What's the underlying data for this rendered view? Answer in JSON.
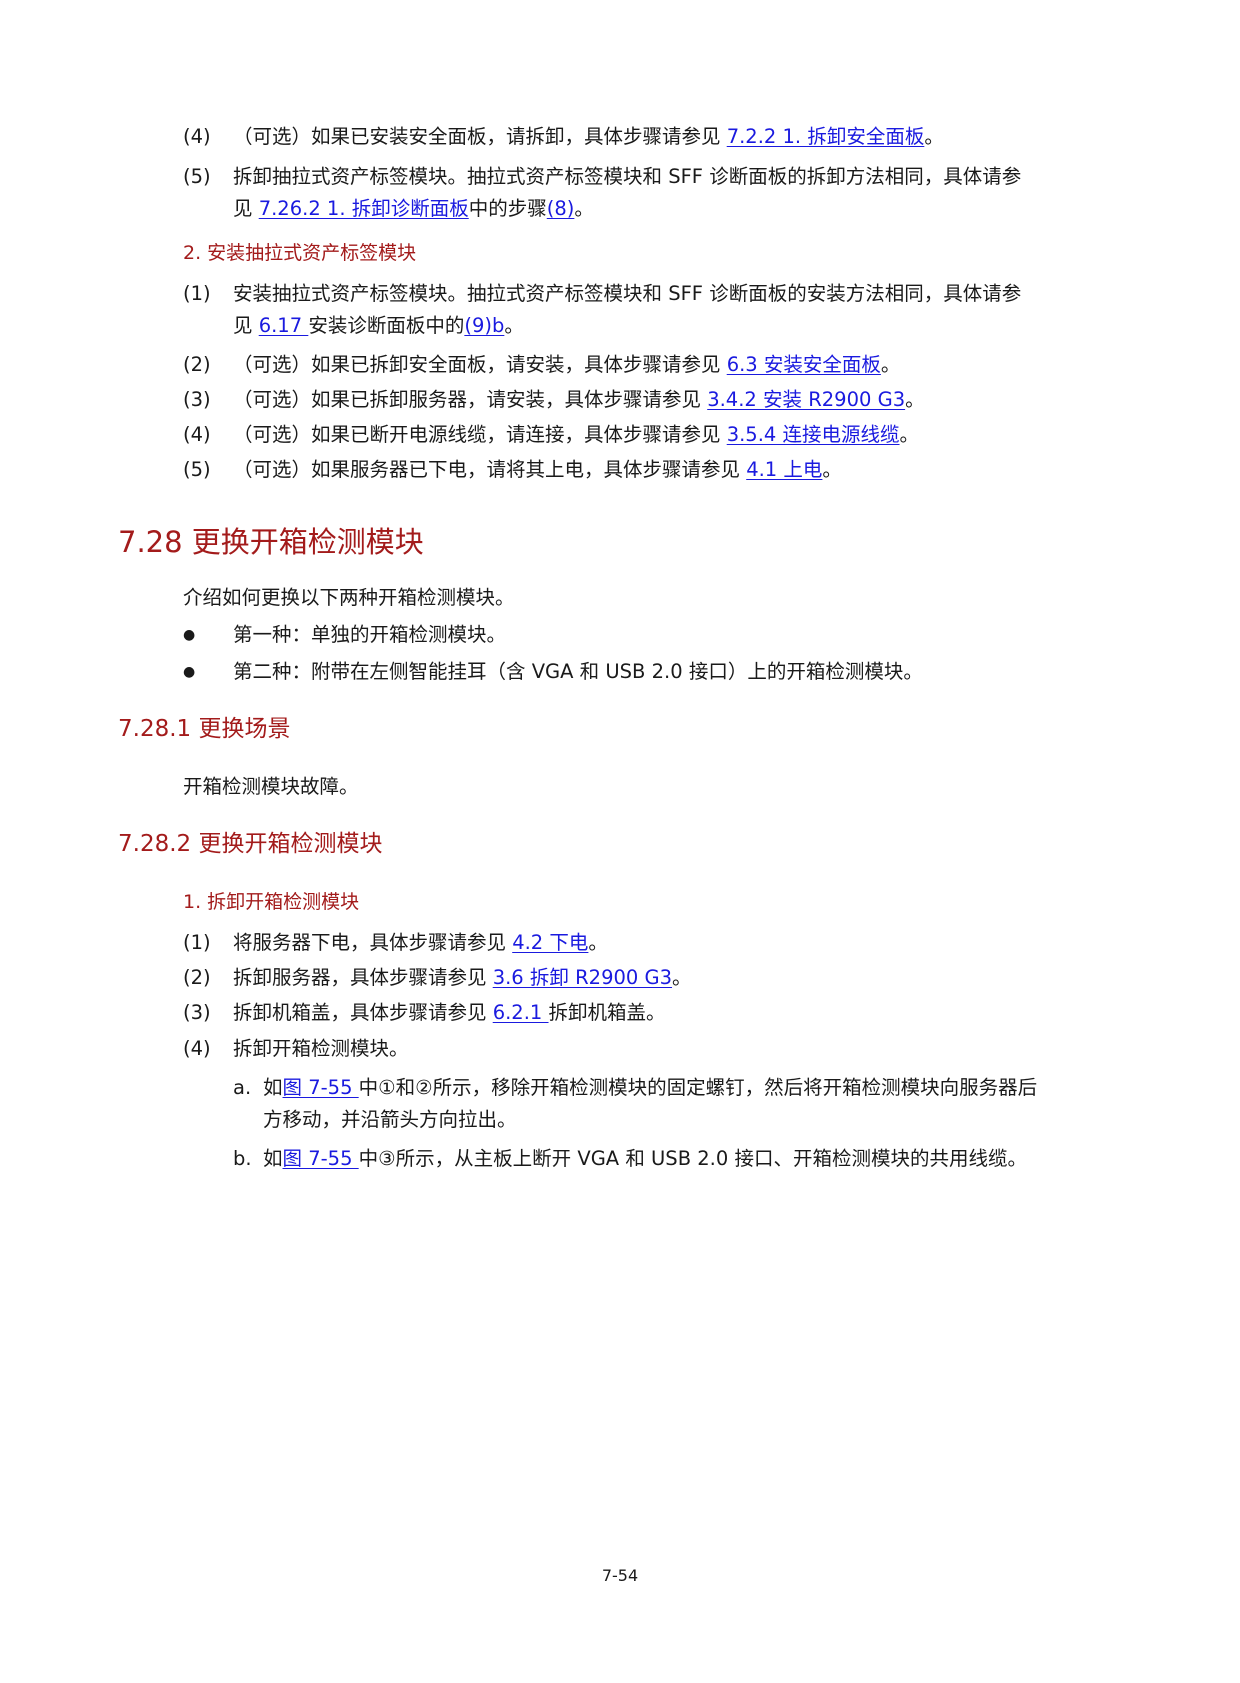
{
  "top": {
    "s4": {
      "num": "(4)",
      "pre": "（可选）如果已安装安全面板，请拆卸，具体步骤请参见 ",
      "link": "7.2.2  1. 拆卸安全面板",
      "post": "。"
    },
    "s5": {
      "num": "(5)",
      "line1": "拆卸抽拉式资产标签模块。抽拉式资产标签模块和 SFF 诊断面板的拆卸方法相同，具体请参",
      "pre2": "见 ",
      "link1": "7.26.2  1. 拆卸诊断面板",
      "mid2": "中的步骤",
      "link2": "(8)",
      "post2": "。"
    }
  },
  "install": {
    "heading": "2. 安装抽拉式资产标签模块",
    "s1": {
      "num": "(1)",
      "line1": "安装抽拉式资产标签模块。抽拉式资产标签模块和 SFF 诊断面板的安装方法相同，具体请参",
      "pre2": "见 ",
      "link1": "6.17 ",
      "mid2": "安装诊断面板中的",
      "link2": "(9)b",
      "post2": "。"
    },
    "s2": {
      "num": "(2)",
      "pre": "（可选）如果已拆卸安全面板，请安装，具体步骤请参见 ",
      "link": "6.3  安装安全面板",
      "post": "。"
    },
    "s3": {
      "num": "(3)",
      "pre": "（可选）如果已拆卸服务器，请安装，具体步骤请参见 ",
      "link": "3.4.2  安装 R2900 G3",
      "post": "。"
    },
    "s4": {
      "num": "(4)",
      "pre": "（可选）如果已断开电源线缆，请连接，具体步骤请参见 ",
      "link": "3.5.4  连接电源线缆",
      "post": "。"
    },
    "s5": {
      "num": "(5)",
      "pre": "（可选）如果服务器已下电，请将其上电，具体步骤请参见 ",
      "link": "4.1  上电",
      "post": "。"
    }
  },
  "section": {
    "title": "7.28  更换开箱检测模块",
    "intro": "介绍如何更换以下两种开箱检测模块。",
    "bullet_glyph": "●",
    "bullet1": "第一种：单独的开箱检测模块。",
    "bullet2": "第二种：附带在左侧智能挂耳（含 VGA 和 USB 2.0 接口）上的开箱检测模块。"
  },
  "scene": {
    "title": "7.28.1  更换场景",
    "text": "开箱检测模块故障。"
  },
  "replace": {
    "title": "7.28.2  更换开箱检测模块",
    "heading": "1. 拆卸开箱检测模块",
    "s1": {
      "num": "(1)",
      "pre": "将服务器下电，具体步骤请参见 ",
      "link": "4.2  下电",
      "post": "。"
    },
    "s2": {
      "num": "(2)",
      "pre": "拆卸服务器，具体步骤请参见 ",
      "link": "3.6  拆卸 R2900 G3",
      "post": "。"
    },
    "s3": {
      "num": "(3)",
      "pre": "拆卸机箱盖，具体步骤请参见 ",
      "link": "6.2.1 ",
      "post": "拆卸机箱盖。"
    },
    "s4": {
      "num": "(4)",
      "text": "拆卸开箱检测模块。"
    },
    "a": {
      "label": "a.",
      "pre": "如",
      "link": "图 7-55 ",
      "post": "中①和②所示，移除开箱检测模块的固定螺钉，然后将开箱检测模块向服务器后",
      "line2": "方移动，并沿箭头方向拉出。"
    },
    "b": {
      "label": "b.",
      "pre": "如",
      "link": "图 7-55 ",
      "post": "中③所示，从主板上断开 VGA 和 USB 2.0 接口、开箱检测模块的共用线缆。"
    }
  },
  "page_number": "7-54",
  "colors": {
    "heading": "#a31b1b",
    "link": "#1a1adf",
    "text": "#1a1a1a"
  }
}
